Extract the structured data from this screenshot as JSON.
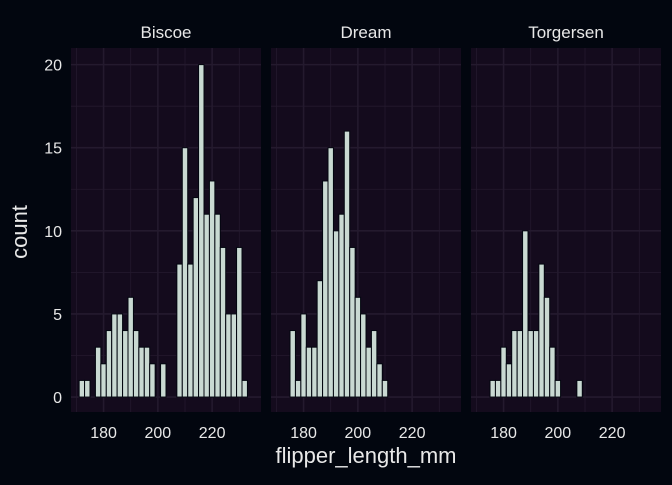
{
  "chart_data": {
    "type": "bar",
    "subtype": "faceted-histogram",
    "title": "",
    "xlabel": "flipper_length_mm",
    "ylabel": "count",
    "xlim": [
      168,
      238
    ],
    "ylim": [
      -0.9,
      21
    ],
    "x_ticks": [
      180,
      200,
      220
    ],
    "y_ticks": [
      0,
      5,
      10,
      15,
      20
    ],
    "grid": true,
    "bin_width": 2,
    "colors": {
      "background": "#02060f",
      "panel": "#140b1d",
      "grid": "#241a2e",
      "bar_fill": "#c9d9d2",
      "bar_outline": "#02060f",
      "text": "#e8e8e8"
    },
    "facets": [
      {
        "name": "Biscoe",
        "bins": [
          {
            "x": 172,
            "count": 1
          },
          {
            "x": 174,
            "count": 1
          },
          {
            "x": 178,
            "count": 3
          },
          {
            "x": 180,
            "count": 2
          },
          {
            "x": 182,
            "count": 4
          },
          {
            "x": 184,
            "count": 5
          },
          {
            "x": 186,
            "count": 5
          },
          {
            "x": 188,
            "count": 4
          },
          {
            "x": 190,
            "count": 6
          },
          {
            "x": 192,
            "count": 4
          },
          {
            "x": 194,
            "count": 3
          },
          {
            "x": 196,
            "count": 3
          },
          {
            "x": 198,
            "count": 2
          },
          {
            "x": 202,
            "count": 2
          },
          {
            "x": 208,
            "count": 8
          },
          {
            "x": 210,
            "count": 15
          },
          {
            "x": 212,
            "count": 8
          },
          {
            "x": 214,
            "count": 12
          },
          {
            "x": 216,
            "count": 20
          },
          {
            "x": 218,
            "count": 11
          },
          {
            "x": 220,
            "count": 13
          },
          {
            "x": 222,
            "count": 11
          },
          {
            "x": 224,
            "count": 9
          },
          {
            "x": 226,
            "count": 5
          },
          {
            "x": 228,
            "count": 5
          },
          {
            "x": 230,
            "count": 9
          },
          {
            "x": 232,
            "count": 1
          }
        ]
      },
      {
        "name": "Dream",
        "bins": [
          {
            "x": 176,
            "count": 4
          },
          {
            "x": 178,
            "count": 1
          },
          {
            "x": 180,
            "count": 5
          },
          {
            "x": 182,
            "count": 3
          },
          {
            "x": 184,
            "count": 3
          },
          {
            "x": 186,
            "count": 7
          },
          {
            "x": 188,
            "count": 13
          },
          {
            "x": 190,
            "count": 15
          },
          {
            "x": 192,
            "count": 10
          },
          {
            "x": 194,
            "count": 11
          },
          {
            "x": 196,
            "count": 16
          },
          {
            "x": 198,
            "count": 9
          },
          {
            "x": 200,
            "count": 6
          },
          {
            "x": 202,
            "count": 5
          },
          {
            "x": 204,
            "count": 3
          },
          {
            "x": 206,
            "count": 4
          },
          {
            "x": 208,
            "count": 2
          },
          {
            "x": 210,
            "count": 1
          }
        ]
      },
      {
        "name": "Torgersen",
        "bins": [
          {
            "x": 176,
            "count": 1
          },
          {
            "x": 178,
            "count": 1
          },
          {
            "x": 180,
            "count": 3
          },
          {
            "x": 182,
            "count": 2
          },
          {
            "x": 184,
            "count": 4
          },
          {
            "x": 186,
            "count": 4
          },
          {
            "x": 188,
            "count": 10
          },
          {
            "x": 190,
            "count": 4
          },
          {
            "x": 192,
            "count": 4
          },
          {
            "x": 194,
            "count": 8
          },
          {
            "x": 196,
            "count": 6
          },
          {
            "x": 198,
            "count": 3
          },
          {
            "x": 200,
            "count": 1
          },
          {
            "x": 208,
            "count": 1
          }
        ]
      }
    ]
  }
}
